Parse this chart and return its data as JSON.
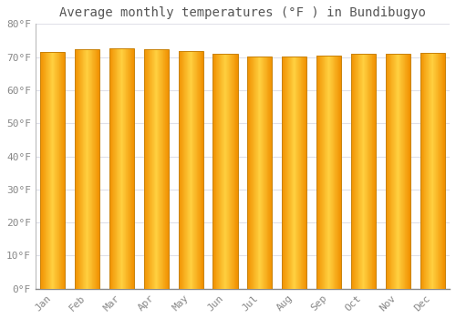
{
  "title": "Average monthly temperatures (°F ) in Bundibugyo",
  "months": [
    "Jan",
    "Feb",
    "Mar",
    "Apr",
    "May",
    "Jun",
    "Jul",
    "Aug",
    "Sep",
    "Oct",
    "Nov",
    "Dec"
  ],
  "values": [
    71.5,
    72.3,
    72.7,
    72.5,
    71.8,
    71.1,
    70.2,
    70.3,
    70.5,
    71.0,
    71.1,
    71.2
  ],
  "ylim": [
    0,
    80
  ],
  "yticks": [
    0,
    10,
    20,
    30,
    40,
    50,
    60,
    70,
    80
  ],
  "ytick_labels": [
    "0°F",
    "10°F",
    "20°F",
    "30°F",
    "40°F",
    "50°F",
    "60°F",
    "70°F",
    "80°F"
  ],
  "bar_color_center": "#FFD040",
  "bar_color_edge": "#F09000",
  "bar_border_color": "#C8820A",
  "background_color": "#FFFFFF",
  "grid_color": "#E0E0E8",
  "title_fontsize": 10,
  "tick_fontsize": 8,
  "font_family": "monospace"
}
